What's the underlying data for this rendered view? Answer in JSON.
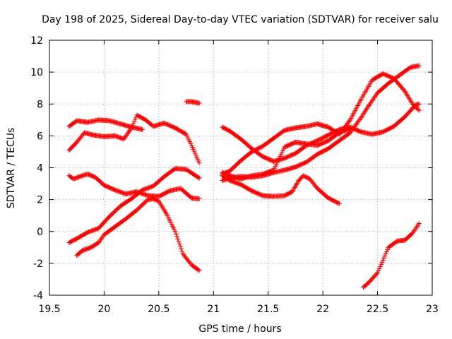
{
  "chart_data": {
    "type": "scatter",
    "title": "Day 198 of 2025, Sidereal Day-to-day VTEC variation (SDTVAR) for receiver salu",
    "xlabel": "GPS time / hours",
    "ylabel": "SDTVAR / TECUs",
    "xlim": [
      19.5,
      23
    ],
    "ylim": [
      -4,
      12
    ],
    "xticks": [
      19.5,
      20,
      20.5,
      21,
      21.5,
      22,
      22.5,
      23
    ],
    "xtick_labels": [
      "19.5",
      "20",
      "20.5",
      "21",
      "21.5",
      "22",
      "22.5",
      "23"
    ],
    "yticks": [
      -4,
      -2,
      0,
      2,
      4,
      6,
      8,
      10,
      12
    ],
    "ytick_labels": [
      "-4",
      "-2",
      "0",
      "2",
      "4",
      "6",
      "8",
      "10",
      "12"
    ],
    "grid": true,
    "marker": "+",
    "color": "#ff0000",
    "series": [
      {
        "name": "s1",
        "points": [
          [
            19.68,
            6.6
          ],
          [
            19.75,
            6.95
          ],
          [
            19.85,
            6.85
          ],
          [
            19.95,
            7.0
          ],
          [
            20.05,
            6.95
          ],
          [
            20.15,
            6.75
          ],
          [
            20.25,
            6.55
          ],
          [
            20.35,
            6.4
          ]
        ]
      },
      {
        "name": "s2",
        "points": [
          [
            19.68,
            5.1
          ],
          [
            19.75,
            5.6
          ],
          [
            19.82,
            6.2
          ],
          [
            19.9,
            6.05
          ],
          [
            20.0,
            5.95
          ],
          [
            20.1,
            6.0
          ],
          [
            20.18,
            5.8
          ],
          [
            20.25,
            6.5
          ],
          [
            20.3,
            7.3
          ],
          [
            20.38,
            7.0
          ],
          [
            20.45,
            6.6
          ],
          [
            20.55,
            6.8
          ],
          [
            20.65,
            6.5
          ],
          [
            20.75,
            6.1
          ],
          [
            20.8,
            5.4
          ],
          [
            20.87,
            4.3
          ]
        ]
      },
      {
        "name": "s3",
        "points": [
          [
            20.75,
            8.15
          ],
          [
            20.8,
            8.15
          ],
          [
            20.87,
            8.05
          ]
        ]
      },
      {
        "name": "s4",
        "points": [
          [
            19.68,
            3.5
          ],
          [
            19.72,
            3.3
          ],
          [
            19.8,
            3.5
          ],
          [
            19.85,
            3.6
          ],
          [
            19.92,
            3.4
          ],
          [
            20.0,
            2.9
          ],
          [
            20.1,
            2.6
          ],
          [
            20.2,
            2.35
          ],
          [
            20.3,
            2.5
          ],
          [
            20.4,
            2.25
          ],
          [
            20.5,
            2.2
          ],
          [
            20.6,
            2.55
          ],
          [
            20.7,
            2.7
          ],
          [
            20.8,
            2.1
          ],
          [
            20.87,
            2.05
          ]
        ]
      },
      {
        "name": "s5",
        "points": [
          [
            19.68,
            -0.7
          ],
          [
            19.75,
            -0.45
          ],
          [
            19.85,
            -0.05
          ],
          [
            19.95,
            0.2
          ],
          [
            20.05,
            0.95
          ],
          [
            20.15,
            1.6
          ],
          [
            20.25,
            2.05
          ],
          [
            20.35,
            2.6
          ],
          [
            20.45,
            2.85
          ],
          [
            20.55,
            3.45
          ],
          [
            20.65,
            3.95
          ],
          [
            20.75,
            3.9
          ],
          [
            20.87,
            3.35
          ]
        ]
      },
      {
        "name": "s6",
        "points": [
          [
            19.75,
            -1.5
          ],
          [
            19.8,
            -1.2
          ],
          [
            19.88,
            -1.0
          ],
          [
            19.95,
            -0.7
          ],
          [
            20.0,
            -0.2
          ],
          [
            20.1,
            0.3
          ],
          [
            20.2,
            0.8
          ],
          [
            20.3,
            1.35
          ],
          [
            20.4,
            2.0
          ],
          [
            20.45,
            2.05
          ],
          [
            20.5,
            1.9
          ],
          [
            20.57,
            1.1
          ],
          [
            20.65,
            0.0
          ],
          [
            20.72,
            -1.4
          ],
          [
            20.8,
            -2.1
          ],
          [
            20.87,
            -2.45
          ]
        ]
      },
      {
        "name": "s7",
        "points": [
          [
            21.08,
            6.55
          ],
          [
            21.15,
            6.3
          ],
          [
            21.25,
            5.8
          ],
          [
            21.35,
            5.2
          ],
          [
            21.45,
            4.7
          ],
          [
            21.55,
            4.4
          ],
          [
            21.65,
            4.6
          ],
          [
            21.75,
            4.9
          ],
          [
            21.85,
            5.4
          ],
          [
            21.95,
            5.7
          ],
          [
            22.05,
            6.05
          ],
          [
            22.15,
            6.4
          ],
          [
            22.25,
            6.55
          ],
          [
            22.35,
            6.25
          ],
          [
            22.45,
            6.1
          ],
          [
            22.55,
            6.25
          ],
          [
            22.65,
            6.6
          ],
          [
            22.75,
            7.2
          ],
          [
            22.85,
            7.95
          ],
          [
            22.88,
            8.0
          ]
        ]
      },
      {
        "name": "s8",
        "points": [
          [
            21.08,
            3.6
          ],
          [
            21.15,
            3.8
          ],
          [
            21.25,
            4.45
          ],
          [
            21.35,
            5.0
          ],
          [
            21.45,
            5.35
          ],
          [
            21.55,
            5.85
          ],
          [
            21.65,
            6.35
          ],
          [
            21.75,
            6.5
          ],
          [
            21.85,
            6.6
          ],
          [
            21.95,
            6.75
          ],
          [
            22.05,
            6.55
          ],
          [
            22.15,
            6.1
          ],
          [
            22.25,
            7.0
          ],
          [
            22.35,
            8.3
          ],
          [
            22.45,
            9.5
          ],
          [
            22.55,
            9.9
          ],
          [
            22.65,
            9.6
          ],
          [
            22.75,
            8.8
          ],
          [
            22.82,
            8.0
          ],
          [
            22.88,
            7.6
          ]
        ]
      },
      {
        "name": "s9",
        "points": [
          [
            21.08,
            3.2
          ],
          [
            21.15,
            3.35
          ],
          [
            21.25,
            3.45
          ],
          [
            21.35,
            3.4
          ],
          [
            21.45,
            3.5
          ],
          [
            21.55,
            3.7
          ],
          [
            21.65,
            3.85
          ],
          [
            21.75,
            4.05
          ],
          [
            21.85,
            4.35
          ],
          [
            21.95,
            4.85
          ],
          [
            22.05,
            5.2
          ],
          [
            22.15,
            5.7
          ],
          [
            22.25,
            6.2
          ],
          [
            22.35,
            7.15
          ],
          [
            22.42,
            7.9
          ],
          [
            22.5,
            8.7
          ],
          [
            22.6,
            9.3
          ],
          [
            22.7,
            9.8
          ],
          [
            22.8,
            10.3
          ],
          [
            22.88,
            10.4
          ]
        ]
      },
      {
        "name": "s10",
        "points": [
          [
            21.08,
            3.5
          ],
          [
            21.15,
            3.2
          ],
          [
            21.25,
            2.95
          ],
          [
            21.35,
            2.55
          ],
          [
            21.45,
            2.25
          ],
          [
            21.55,
            2.2
          ],
          [
            21.65,
            2.25
          ],
          [
            21.72,
            2.5
          ],
          [
            21.78,
            3.2
          ],
          [
            21.82,
            3.5
          ],
          [
            21.88,
            3.3
          ],
          [
            21.95,
            2.7
          ],
          [
            22.05,
            2.1
          ],
          [
            22.15,
            1.75
          ]
        ]
      },
      {
        "name": "s11",
        "points": [
          [
            21.08,
            3.7
          ],
          [
            21.15,
            3.5
          ],
          [
            21.25,
            3.3
          ],
          [
            21.35,
            3.5
          ],
          [
            21.45,
            3.6
          ],
          [
            21.55,
            3.85
          ],
          [
            21.65,
            5.3
          ],
          [
            21.75,
            5.6
          ],
          [
            21.85,
            5.5
          ],
          [
            21.95,
            5.4
          ],
          [
            22.05,
            5.7
          ],
          [
            22.15,
            6.2
          ],
          [
            22.25,
            6.45
          ]
        ]
      },
      {
        "name": "s12",
        "points": [
          [
            22.37,
            -3.5
          ],
          [
            22.42,
            -3.2
          ],
          [
            22.5,
            -2.6
          ],
          [
            22.55,
            -1.8
          ],
          [
            22.6,
            -1.0
          ],
          [
            22.68,
            -0.6
          ],
          [
            22.75,
            -0.55
          ],
          [
            22.82,
            -0.1
          ],
          [
            22.88,
            0.5
          ]
        ]
      }
    ]
  }
}
